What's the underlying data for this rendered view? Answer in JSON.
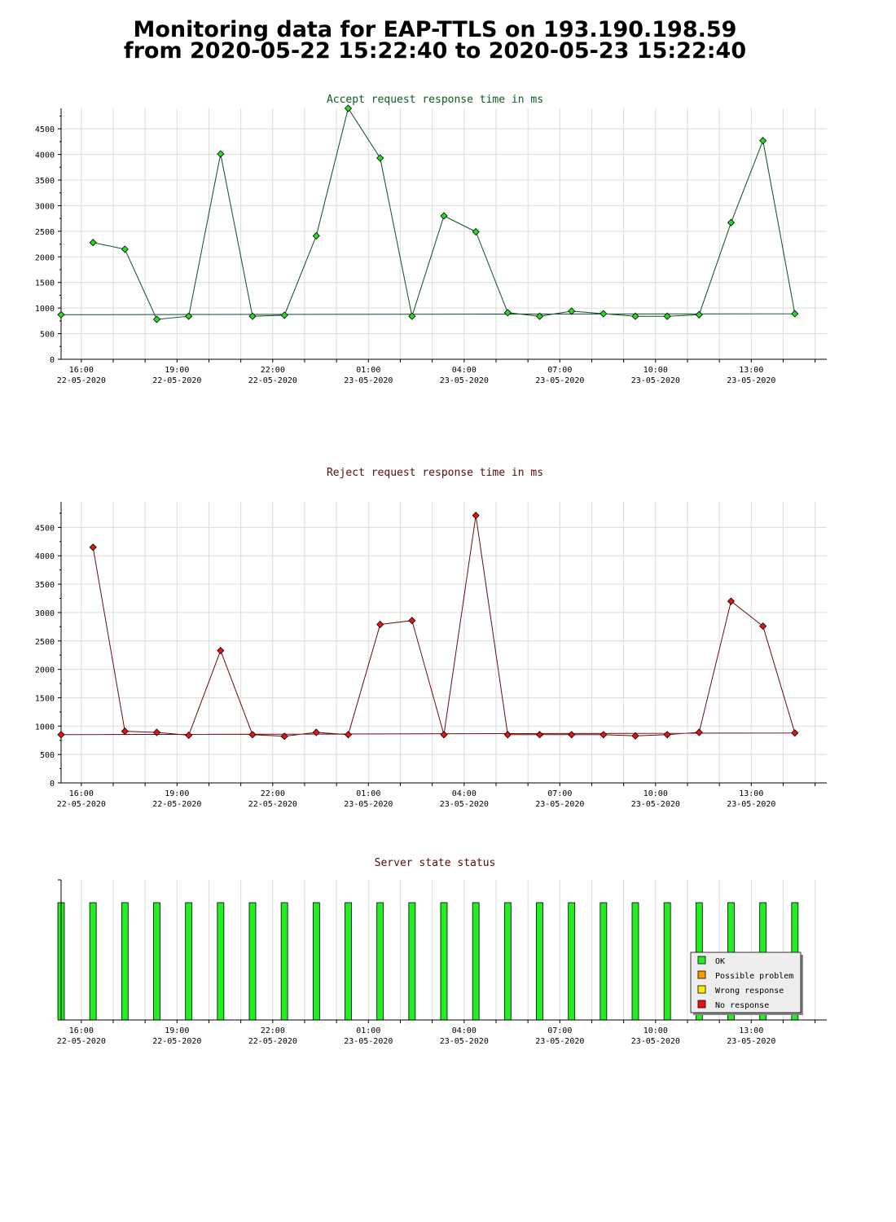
{
  "page": {
    "title_line1": "Monitoring data for EAP-TTLS on 193.190.198.59",
    "title_line2": "from 2020-05-22 15:22:40 to 2020-05-23 15:22:40"
  },
  "colors": {
    "accept_line": "#0b4d24",
    "accept_marker": "#22dd22",
    "reject_line": "#6a0a0a",
    "reject_marker": "#ee1111",
    "status_ok": "#22ee22",
    "possible_problem": "#ff9900",
    "wrong_response": "#ffee00",
    "no_response": "#ee1111",
    "accept_title": "#0b5d1e",
    "reject_title": "#5a0a0a",
    "status_title": "#5a0a0a"
  },
  "chart_data": [
    {
      "id": "accept",
      "type": "line",
      "title": "Accept request response time in ms",
      "xlabel": "",
      "ylabel": "",
      "ylim": [
        0,
        4900
      ],
      "yticks": [
        0,
        500,
        1000,
        1500,
        2000,
        2500,
        3000,
        3500,
        4000,
        4500
      ],
      "x_ticks": [
        {
          "time": "16:00",
          "date": "22-05-2020"
        },
        {
          "time": "19:00",
          "date": "22-05-2020"
        },
        {
          "time": "22:00",
          "date": "22-05-2020"
        },
        {
          "time": "01:00",
          "date": "23-05-2020"
        },
        {
          "time": "04:00",
          "date": "23-05-2020"
        },
        {
          "time": "07:00",
          "date": "23-05-2020"
        },
        {
          "time": "10:00",
          "date": "23-05-2020"
        },
        {
          "time": "13:00",
          "date": "23-05-2020"
        }
      ],
      "grid": true,
      "x": [
        "16:22",
        "17:22",
        "18:22",
        "19:22",
        "20:22",
        "21:22",
        "22:22",
        "23:22",
        "00:22",
        "01:22",
        "02:22",
        "03:22",
        "04:22",
        "05:22",
        "06:22",
        "07:22",
        "08:22",
        "09:22",
        "10:22",
        "11:22",
        "12:22",
        "13:22",
        "14:22",
        "15:22"
      ],
      "values": [
        2280,
        2150,
        780,
        840,
        4010,
        840,
        860,
        2410,
        4900,
        3930,
        840,
        2800,
        2490,
        910,
        840,
        940,
        890,
        840,
        840,
        870,
        2670,
        4270,
        890,
        870
      ]
    },
    {
      "id": "reject",
      "type": "line",
      "title": "Reject request response time in ms",
      "xlabel": "",
      "ylabel": "",
      "ylim": [
        0,
        4950
      ],
      "yticks": [
        0,
        500,
        1000,
        1500,
        2000,
        2500,
        3000,
        3500,
        4000,
        4500
      ],
      "x_ticks": [
        {
          "time": "16:00",
          "date": "22-05-2020"
        },
        {
          "time": "19:00",
          "date": "22-05-2020"
        },
        {
          "time": "22:00",
          "date": "22-05-2020"
        },
        {
          "time": "01:00",
          "date": "23-05-2020"
        },
        {
          "time": "04:00",
          "date": "23-05-2020"
        },
        {
          "time": "07:00",
          "date": "23-05-2020"
        },
        {
          "time": "10:00",
          "date": "23-05-2020"
        },
        {
          "time": "13:00",
          "date": "23-05-2020"
        }
      ],
      "grid": true,
      "x": [
        "16:22",
        "17:22",
        "18:22",
        "19:22",
        "20:22",
        "21:22",
        "22:22",
        "23:22",
        "00:22",
        "01:22",
        "02:22",
        "03:22",
        "04:22",
        "05:22",
        "06:22",
        "07:22",
        "08:22",
        "09:22",
        "10:22",
        "11:22",
        "12:22",
        "13:22",
        "14:22",
        "15:22"
      ],
      "values": [
        4150,
        910,
        890,
        840,
        2330,
        850,
        820,
        890,
        850,
        2790,
        2860,
        850,
        4710,
        850,
        850,
        850,
        850,
        830,
        850,
        890,
        3200,
        2760,
        880,
        850
      ]
    },
    {
      "id": "status",
      "type": "bar",
      "title": "Server state status",
      "xlabel": "",
      "ylabel": "",
      "x_ticks": [
        {
          "time": "16:00",
          "date": "22-05-2020"
        },
        {
          "time": "19:00",
          "date": "22-05-2020"
        },
        {
          "time": "22:00",
          "date": "22-05-2020"
        },
        {
          "time": "01:00",
          "date": "23-05-2020"
        },
        {
          "time": "04:00",
          "date": "23-05-2020"
        },
        {
          "time": "07:00",
          "date": "23-05-2020"
        },
        {
          "time": "10:00",
          "date": "23-05-2020"
        },
        {
          "time": "13:00",
          "date": "23-05-2020"
        }
      ],
      "x": [
        "16:22",
        "17:22",
        "18:22",
        "19:22",
        "20:22",
        "21:22",
        "22:22",
        "23:22",
        "00:22",
        "01:22",
        "02:22",
        "03:22",
        "04:22",
        "05:22",
        "06:22",
        "07:22",
        "08:22",
        "09:22",
        "10:22",
        "11:22",
        "12:22",
        "13:22",
        "14:22",
        "15:22"
      ],
      "states": [
        "OK",
        "OK",
        "OK",
        "OK",
        "OK",
        "OK",
        "OK",
        "OK",
        "OK",
        "OK",
        "OK",
        "OK",
        "OK",
        "OK",
        "OK",
        "OK",
        "OK",
        "OK",
        "OK",
        "OK",
        "OK",
        "OK",
        "OK",
        "OK"
      ],
      "legend_position": "bottom-right",
      "legend": [
        {
          "label": "OK",
          "color": "#22ee22"
        },
        {
          "label": "Possible problem",
          "color": "#ff9900"
        },
        {
          "label": "Wrong response",
          "color": "#ffee00"
        },
        {
          "label": "No response",
          "color": "#ee1111"
        }
      ]
    }
  ]
}
